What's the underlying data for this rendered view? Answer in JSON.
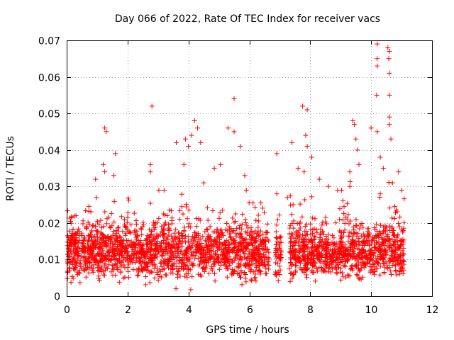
{
  "chart_data": {
    "type": "scatter",
    "title": "Day 066 of 2022, Rate Of TEC Index for receiver vacs",
    "xlabel": "GPS time / hours",
    "ylabel": "ROTI / TECUs",
    "xlim": [
      0,
      12
    ],
    "ylim": [
      0,
      0.07
    ],
    "xticks": [
      "0",
      "2",
      "4",
      "6",
      "8",
      "10",
      "12"
    ],
    "yticks": [
      "0",
      "0.01",
      "0.02",
      "0.03",
      "0.04",
      "0.05",
      "0.06",
      "0.07"
    ],
    "grid": true,
    "marker": "+",
    "color": "#ff0000",
    "coverage": {
      "segments": [
        [
          0.0,
          6.65
        ],
        [
          6.85,
          7.05
        ],
        [
          7.3,
          11.1
        ]
      ],
      "typical_range": [
        0.004,
        0.02
      ]
    },
    "series": [
      {
        "name": "ROTI",
        "points": [
          [
            2.8,
            0.052
          ],
          [
            5.5,
            0.054
          ],
          [
            7.75,
            0.052
          ],
          [
            7.9,
            0.051
          ],
          [
            10.15,
            0.07
          ],
          [
            10.2,
            0.069
          ],
          [
            10.55,
            0.068
          ],
          [
            10.6,
            0.067
          ],
          [
            10.58,
            0.065
          ],
          [
            10.6,
            0.061
          ],
          [
            10.2,
            0.065
          ],
          [
            10.2,
            0.063
          ],
          [
            10.18,
            0.055
          ],
          [
            10.6,
            0.055
          ],
          [
            10.6,
            0.049
          ],
          [
            10.6,
            0.047
          ],
          [
            1.25,
            0.046
          ],
          [
            1.3,
            0.045
          ],
          [
            4.2,
            0.048
          ],
          [
            4.3,
            0.046
          ],
          [
            5.3,
            0.046
          ],
          [
            5.5,
            0.045
          ],
          [
            9.4,
            0.048
          ],
          [
            9.45,
            0.047
          ],
          [
            10.0,
            0.046
          ],
          [
            10.2,
            0.045
          ],
          [
            10.65,
            0.043
          ],
          [
            7.4,
            0.042
          ],
          [
            7.85,
            0.044
          ],
          [
            7.9,
            0.041
          ],
          [
            1.6,
            0.039
          ],
          [
            3.6,
            0.042
          ],
          [
            3.9,
            0.043
          ],
          [
            4.0,
            0.041
          ],
          [
            4.1,
            0.044
          ],
          [
            4.4,
            0.042
          ],
          [
            5.7,
            0.041
          ],
          [
            6.9,
            0.039
          ],
          [
            8.05,
            0.038
          ],
          [
            9.55,
            0.04
          ],
          [
            9.5,
            0.043
          ],
          [
            10.3,
            0.038
          ],
          [
            2.75,
            0.036
          ],
          [
            2.75,
            0.034
          ],
          [
            1.2,
            0.036
          ],
          [
            1.25,
            0.034
          ],
          [
            0.95,
            0.032
          ],
          [
            1.55,
            0.033
          ],
          [
            3.85,
            0.036
          ],
          [
            4.85,
            0.035
          ],
          [
            5.05,
            0.036
          ],
          [
            5.85,
            0.033
          ],
          [
            7.6,
            0.035
          ],
          [
            7.8,
            0.034
          ],
          [
            8.3,
            0.032
          ],
          [
            9.3,
            0.034
          ],
          [
            9.6,
            0.036
          ],
          [
            10.4,
            0.035
          ],
          [
            10.9,
            0.034
          ],
          [
            6.9,
            0.028
          ],
          [
            3.2,
            0.029
          ],
          [
            4.5,
            0.031
          ],
          [
            5.9,
            0.029
          ],
          [
            7.25,
            0.027
          ],
          [
            8.6,
            0.03
          ],
          [
            8.9,
            0.029
          ],
          [
            9.3,
            0.03
          ],
          [
            10.3,
            0.028
          ],
          [
            10.7,
            0.031
          ],
          [
            11.0,
            0.029
          ]
        ]
      }
    ]
  }
}
